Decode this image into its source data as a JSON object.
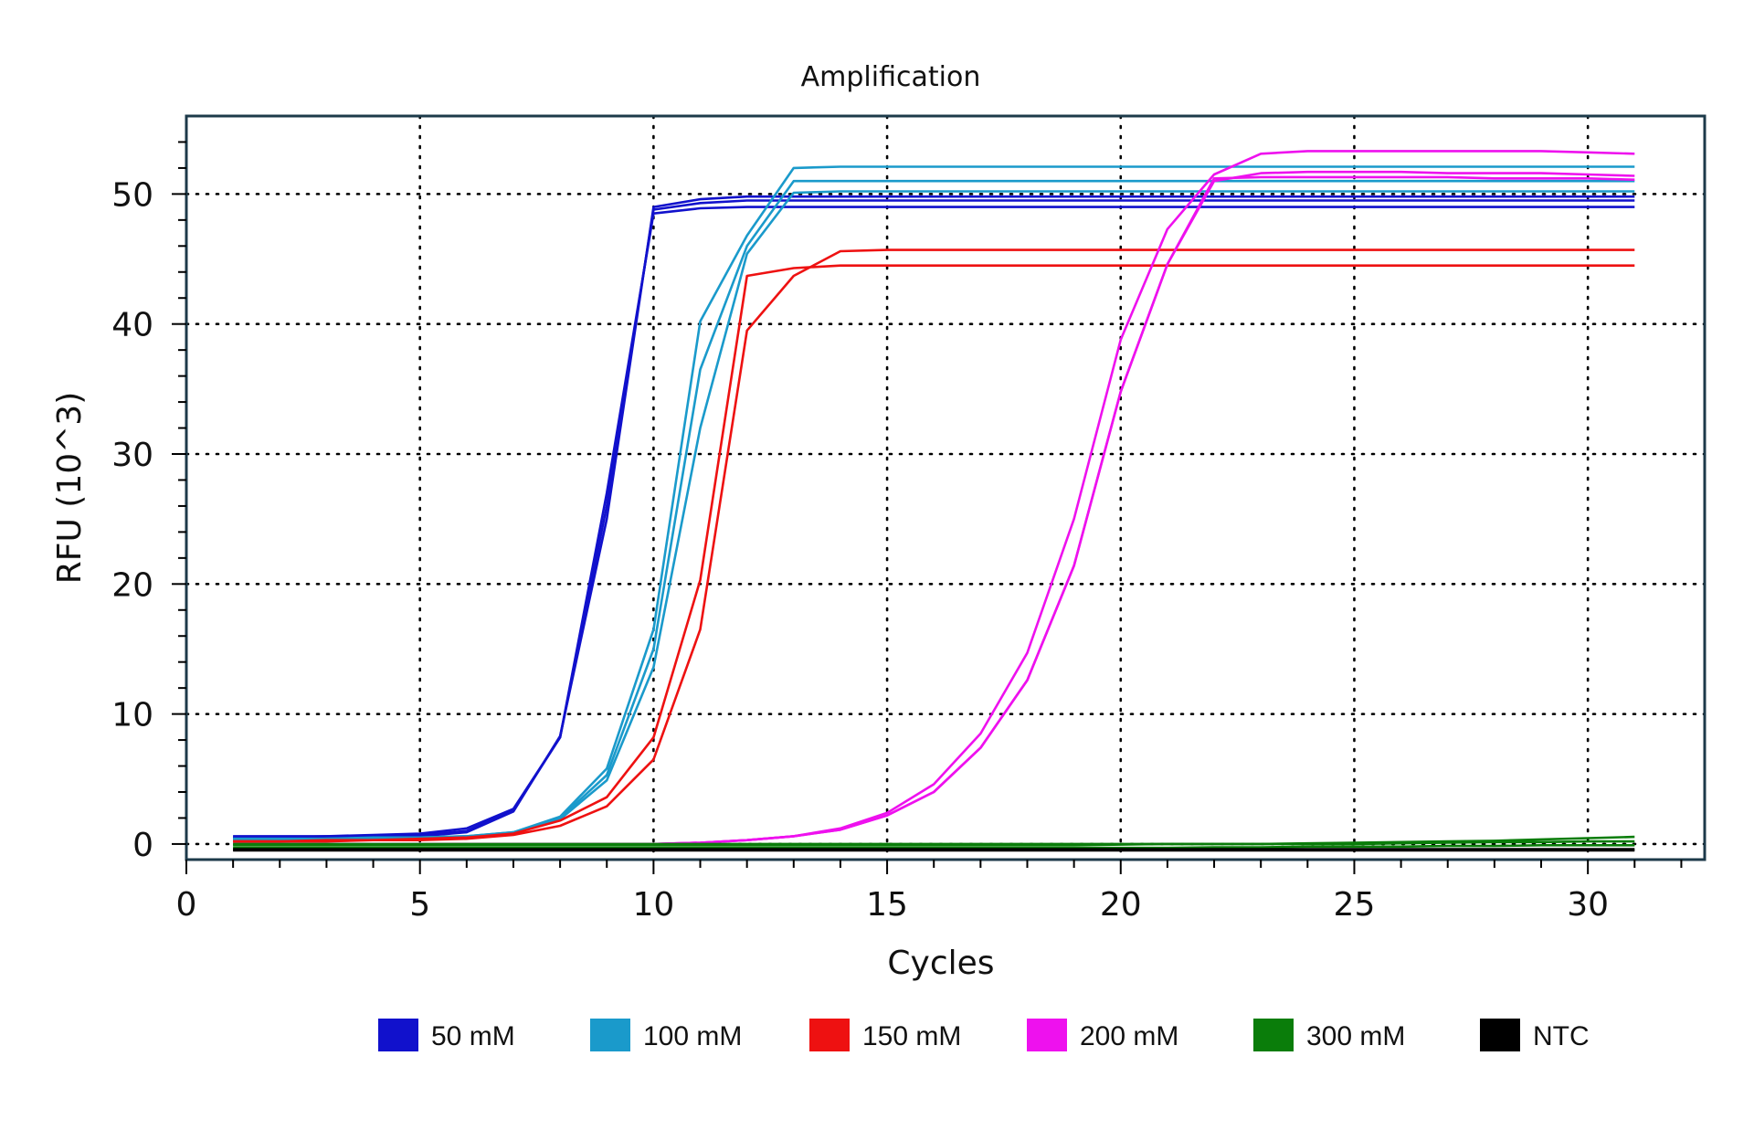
{
  "chart_data": {
    "type": "line",
    "title": "Amplification",
    "xlabel": "Cycles",
    "ylabel": "RFU (10^3)",
    "xlim": [
      0,
      32.5
    ],
    "ylim": [
      -1.2,
      56
    ],
    "xticks": [
      0,
      5,
      10,
      15,
      20,
      25,
      30
    ],
    "yticks": [
      0,
      10,
      20,
      30,
      40,
      50
    ],
    "grid": true,
    "legend_position": "bottom",
    "x": [
      1,
      2,
      3,
      4,
      5,
      6,
      7,
      8,
      9,
      10,
      11,
      12,
      13,
      14,
      15,
      16,
      17,
      18,
      19,
      20,
      21,
      22,
      23,
      24,
      25,
      26,
      27,
      28,
      29,
      30,
      31
    ],
    "groups": [
      {
        "name": "50 mM",
        "color": "#1111cc",
        "series": [
          {
            "values": [
              0.6,
              0.6,
              0.6,
              0.7,
              0.8,
              1.2,
              2.7,
              8.2,
              27.0,
              48.5,
              48.9,
              49.0,
              49.0,
              49.0,
              49.0,
              49.0,
              49.0,
              49.0,
              49.0,
              49.0,
              49.0,
              49.0,
              49.0,
              49.0,
              49.0,
              49.0,
              49.0,
              49.0,
              49.0,
              49.0,
              49.0
            ]
          },
          {
            "values": [
              0.5,
              0.5,
              0.6,
              0.6,
              0.7,
              1.0,
              2.6,
              8.2,
              26.0,
              48.8,
              49.3,
              49.5,
              49.5,
              49.5,
              49.5,
              49.5,
              49.5,
              49.5,
              49.5,
              49.5,
              49.5,
              49.5,
              49.5,
              49.5,
              49.5,
              49.5,
              49.5,
              49.5,
              49.5,
              49.5,
              49.5
            ]
          },
          {
            "values": [
              0.4,
              0.4,
              0.5,
              0.5,
              0.6,
              0.9,
              2.5,
              8.3,
              25.0,
              49.0,
              49.6,
              49.8,
              49.8,
              49.8,
              49.8,
              49.8,
              49.8,
              49.8,
              49.8,
              49.8,
              49.8,
              49.8,
              49.8,
              49.8,
              49.8,
              49.8,
              49.8,
              49.8,
              49.8,
              49.8,
              49.8
            ]
          }
        ]
      },
      {
        "name": "100 mM",
        "color": "#1a9acb",
        "series": [
          {
            "values": [
              0.4,
              0.4,
              0.4,
              0.5,
              0.5,
              0.6,
              0.9,
              2.1,
              5.8,
              16.5,
              40.2,
              46.8,
              52.0,
              52.1,
              52.1,
              52.1,
              52.1,
              52.1,
              52.1,
              52.1,
              52.1,
              52.1,
              52.1,
              52.1,
              52.1,
              52.1,
              52.1,
              52.1,
              52.1,
              52.1,
              52.1
            ]
          },
          {
            "values": [
              0.3,
              0.3,
              0.4,
              0.4,
              0.5,
              0.6,
              0.9,
              2.0,
              5.3,
              15.0,
              36.5,
              46.0,
              51.0,
              51.0,
              51.0,
              51.0,
              51.0,
              51.0,
              51.0,
              51.0,
              51.0,
              51.0,
              51.0,
              51.0,
              51.0,
              51.0,
              51.0,
              51.0,
              51.0,
              51.0,
              51.0
            ]
          },
          {
            "values": [
              0.3,
              0.3,
              0.3,
              0.4,
              0.4,
              0.5,
              0.8,
              1.9,
              4.9,
              13.6,
              32.0,
              45.4,
              50.1,
              50.2,
              50.2,
              50.2,
              50.2,
              50.2,
              50.2,
              50.2,
              50.2,
              50.2,
              50.2,
              50.2,
              50.2,
              50.2,
              50.2,
              50.2,
              50.2,
              50.2,
              50.2
            ]
          }
        ]
      },
      {
        "name": "150 mM",
        "color": "#ee1111",
        "series": [
          {
            "values": [
              0.2,
              0.2,
              0.3,
              0.3,
              0.4,
              0.5,
              0.8,
              1.8,
              3.6,
              8.2,
              20.3,
              43.7,
              44.3,
              44.5,
              44.5,
              44.5,
              44.5,
              44.5,
              44.5,
              44.5,
              44.5,
              44.5,
              44.5,
              44.5,
              44.5,
              44.5,
              44.5,
              44.5,
              44.5,
              44.5,
              44.5
            ]
          },
          {
            "values": [
              0.2,
              0.2,
              0.2,
              0.3,
              0.3,
              0.4,
              0.7,
              1.4,
              2.9,
              6.5,
              16.5,
              39.5,
              43.7,
              45.6,
              45.7,
              45.7,
              45.7,
              45.7,
              45.7,
              45.7,
              45.7,
              45.7,
              45.7,
              45.7,
              45.7,
              45.7,
              45.7,
              45.7,
              45.7,
              45.7,
              45.7
            ]
          }
        ]
      },
      {
        "name": "200 mM",
        "color": "#ee11ee",
        "series": [
          {
            "values": [
              0.0,
              0.0,
              0.0,
              0.0,
              0.0,
              0.0,
              0.0,
              0.0,
              0.0,
              0.0,
              0.1,
              0.3,
              0.6,
              1.2,
              2.4,
              4.6,
              8.5,
              14.7,
              25.0,
              38.8,
              47.3,
              51.5,
              53.1,
              53.3,
              53.3,
              53.3,
              53.3,
              53.3,
              53.3,
              53.2,
              53.1
            ]
          },
          {
            "values": [
              0.0,
              0.0,
              0.0,
              0.0,
              0.0,
              0.0,
              0.0,
              0.0,
              0.0,
              0.0,
              0.1,
              0.3,
              0.6,
              1.1,
              2.2,
              4.0,
              7.4,
              12.6,
              21.4,
              34.8,
              44.6,
              51.0,
              51.6,
              51.7,
              51.7,
              51.7,
              51.6,
              51.6,
              51.6,
              51.5,
              51.4
            ]
          },
          {
            "values": [
              0.0,
              0.0,
              0.0,
              0.0,
              0.0,
              0.0,
              0.0,
              0.0,
              0.0,
              0.0,
              0.1,
              0.3,
              0.6,
              1.1,
              2.2,
              4.0,
              7.4,
              12.6,
              21.4,
              34.8,
              44.6,
              51.2,
              51.3,
              51.3,
              51.3,
              51.3,
              51.3,
              51.2,
              51.2,
              51.2,
              51.1
            ]
          }
        ]
      },
      {
        "name": "300 mM",
        "color": "#0a7d0a",
        "series": [
          {
            "values": [
              0.0,
              0.0,
              0.0,
              0.0,
              0.0,
              0.0,
              0.0,
              0.0,
              0.0,
              0.0,
              0.0,
              0.0,
              0.0,
              0.0,
              0.0,
              0.0,
              0.0,
              0.0,
              0.0,
              0.0,
              0.0,
              0.0,
              0.0,
              0.05,
              0.1,
              0.15,
              0.2,
              0.25,
              0.35,
              0.45,
              0.55
            ]
          },
          {
            "values": [
              -0.1,
              -0.1,
              -0.1,
              -0.1,
              -0.1,
              -0.1,
              -0.1,
              -0.1,
              -0.1,
              -0.1,
              -0.1,
              -0.1,
              -0.1,
              -0.1,
              -0.1,
              -0.1,
              -0.1,
              -0.1,
              -0.1,
              -0.05,
              0.0,
              0.0,
              0.0,
              0.0,
              0.0,
              0.05,
              0.1,
              0.15,
              0.15,
              0.2,
              0.2
            ]
          },
          {
            "values": [
              -0.3,
              -0.3,
              -0.3,
              -0.3,
              -0.3,
              -0.3,
              -0.3,
              -0.3,
              -0.3,
              -0.3,
              -0.3,
              -0.3,
              -0.3,
              -0.3,
              -0.3,
              -0.3,
              -0.3,
              -0.3,
              -0.3,
              -0.3,
              -0.3,
              -0.25,
              -0.25,
              -0.2,
              -0.2,
              -0.2,
              -0.15,
              -0.15,
              -0.1,
              -0.1,
              -0.1
            ]
          }
        ]
      },
      {
        "name": "NTC",
        "color": "#000000",
        "series": [
          {
            "values": [
              -0.5,
              -0.5,
              -0.5,
              -0.5,
              -0.5,
              -0.5,
              -0.5,
              -0.5,
              -0.5,
              -0.5,
              -0.5,
              -0.5,
              -0.5,
              -0.5,
              -0.5,
              -0.5,
              -0.5,
              -0.5,
              -0.5,
              -0.5,
              -0.5,
              -0.5,
              -0.5,
              -0.5,
              -0.5,
              -0.5,
              -0.5,
              -0.5,
              -0.5,
              -0.5,
              -0.5
            ]
          },
          {
            "values": [
              -0.4,
              -0.4,
              -0.4,
              -0.4,
              -0.4,
              -0.4,
              -0.4,
              -0.4,
              -0.4,
              -0.4,
              -0.4,
              -0.4,
              -0.4,
              -0.4,
              -0.4,
              -0.4,
              -0.4,
              -0.4,
              -0.4,
              -0.4,
              -0.4,
              -0.4,
              -0.4,
              -0.4,
              -0.4,
              -0.4,
              -0.4,
              -0.4,
              -0.4,
              -0.4,
              -0.4
            ]
          }
        ]
      }
    ]
  }
}
